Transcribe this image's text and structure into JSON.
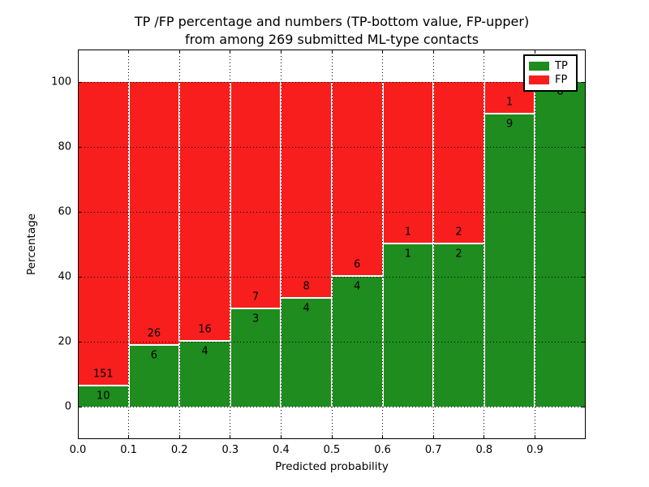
{
  "figure": {
    "title_line1": "TP /FP percentage and numbers (TP-bottom value, FP-upper)",
    "title_line2": "from among 269 submitted ML-type contacts",
    "xlabel": "Predicted probability",
    "ylabel": "Percentage"
  },
  "legend": {
    "position": "upper-right",
    "items": [
      {
        "label": "TP",
        "color": "#1e8c1e"
      },
      {
        "label": "FP",
        "color": "#f81e1e"
      }
    ]
  },
  "chart_data": {
    "type": "bar",
    "stacked": true,
    "normalized": "each bin stacked to 100 percent",
    "title": "TP /FP percentage and numbers (TP-bottom value, FP-upper) from among 269 submitted ML-type contacts",
    "xlabel": "Predicted probability",
    "ylabel": "Percentage",
    "total_contacts": 269,
    "bin_edges": [
      0.0,
      0.1,
      0.2,
      0.3,
      0.4,
      0.5,
      0.6,
      0.7,
      0.8,
      0.9,
      1.0
    ],
    "xtick_labels": [
      "0.0",
      "0.1",
      "0.2",
      "0.3",
      "0.4",
      "0.5",
      "0.6",
      "0.7",
      "0.8",
      "0.9"
    ],
    "ytick_values": [
      0,
      20,
      40,
      60,
      80,
      100
    ],
    "ytick_labels": [
      "0",
      "20",
      "40",
      "60",
      "80",
      "100"
    ],
    "xlim": [
      0.0,
      1.0
    ],
    "ylim": [
      -10,
      110
    ],
    "grid": true,
    "series": [
      {
        "name": "TP",
        "color": "#1e8c1e",
        "counts": [
          10,
          6,
          4,
          3,
          4,
          4,
          1,
          2,
          9,
          8
        ]
      },
      {
        "name": "FP",
        "color": "#f81e1e",
        "counts": [
          151,
          26,
          16,
          7,
          8,
          6,
          1,
          2,
          1,
          0
        ]
      }
    ],
    "tp_percent_per_bin": [
      6.2,
      18.8,
      20.0,
      30.0,
      33.3,
      40.0,
      50.0,
      50.0,
      90.0,
      100.0
    ]
  }
}
